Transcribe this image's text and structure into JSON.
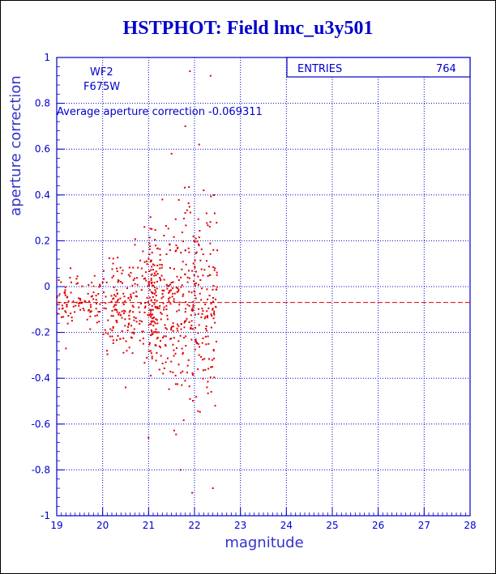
{
  "chart_data": {
    "type": "scatter",
    "title": "HSTPHOT: Field lmc_u3y501",
    "xlabel": "magnitude",
    "ylabel": "aperture correction",
    "xlim": [
      19,
      28
    ],
    "ylim": [
      -1,
      1
    ],
    "xticks": [
      "19",
      "20",
      "21",
      "22",
      "23",
      "24",
      "25",
      "26",
      "27",
      "28"
    ],
    "yticks": [
      "1",
      "0.8",
      "0.6",
      "0.4",
      "0.2",
      "0",
      "-0.2",
      "-0.4",
      "-0.6",
      "-0.8",
      "-1"
    ],
    "grid": true,
    "labels": {
      "chip": "WF2",
      "filter": "F675W"
    },
    "annotation": "Average aperture correction -0.069311",
    "average_line": -0.069311,
    "stats": {
      "entries_label": "ENTRIES",
      "entries_value": "764"
    },
    "colors": {
      "axis": "#0000cc",
      "points": "#dd0000",
      "grid": "#0000cc"
    },
    "points_summary": {
      "count": 764,
      "x_range": [
        19.0,
        22.5
      ],
      "y_center": -0.07,
      "note_markers": [
        [
          21.9,
          0.94
        ],
        [
          22.35,
          0.92
        ],
        [
          21.8,
          0.7
        ],
        [
          22.1,
          0.62
        ],
        [
          21.5,
          0.58
        ],
        [
          22.2,
          0.42
        ],
        [
          21.3,
          0.38
        ],
        [
          21.95,
          -0.9
        ],
        [
          22.4,
          -0.88
        ],
        [
          21.7,
          -0.8
        ],
        [
          21.0,
          -0.66
        ],
        [
          20.5,
          -0.44
        ],
        [
          19.3,
          0.08
        ],
        [
          19.2,
          -0.27
        ],
        [
          22.45,
          -0.52
        ]
      ]
    }
  }
}
